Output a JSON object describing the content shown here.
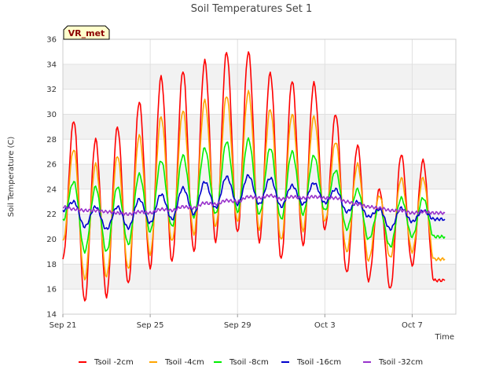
{
  "chart_data": {
    "type": "line",
    "title": "Soil Temperatures Set 1",
    "xlabel": "Time",
    "ylabel": "Soil Temperature (C)",
    "badge": "VR_met",
    "x_ticks": [
      "Sep 21",
      "Sep 25",
      "Sep 29",
      "Oct 3",
      "Oct 7"
    ],
    "x_tick_days": [
      0,
      4,
      8,
      12,
      16
    ],
    "xlim_days": [
      0,
      18
    ],
    "ylim": [
      14,
      36
    ],
    "y_ticks": [
      14,
      16,
      18,
      20,
      22,
      24,
      26,
      28,
      30,
      32,
      34,
      36
    ],
    "grid": true,
    "legend_placement": "bottom",
    "x": [
      0.0,
      0.5,
      1.0,
      1.5,
      2.0,
      2.5,
      3.0,
      3.5,
      4.0,
      4.5,
      5.0,
      5.5,
      6.0,
      6.5,
      7.0,
      7.5,
      8.0,
      8.5,
      9.0,
      9.5,
      10.0,
      10.5,
      11.0,
      11.5,
      12.0,
      12.5,
      13.0,
      13.5,
      14.0,
      14.5,
      15.0,
      15.5,
      16.0,
      16.5,
      17.0,
      17.5
    ],
    "series": [
      {
        "name": "Tsoil -2cm",
        "color": "#ff0000",
        "values": [
          18.4,
          29.5,
          15.0,
          28.0,
          15.4,
          29.0,
          16.4,
          31.0,
          17.7,
          33.0,
          18.2,
          33.5,
          19.0,
          34.3,
          19.8,
          35.0,
          20.5,
          35.0,
          19.8,
          33.3,
          18.4,
          32.7,
          19.5,
          32.5,
          20.8,
          30.0,
          17.3,
          27.5,
          16.7,
          24.0,
          16.0,
          26.8,
          17.9,
          26.3,
          16.7,
          16.7
        ]
      },
      {
        "name": "Tsoil -4cm",
        "color": "#ffa500",
        "values": [
          19.8,
          27.2,
          16.8,
          26.0,
          17.0,
          26.7,
          17.6,
          28.3,
          18.8,
          29.8,
          19.8,
          30.3,
          20.4,
          31.1,
          21.0,
          31.5,
          21.4,
          31.8,
          20.8,
          30.4,
          19.9,
          30.0,
          20.7,
          29.8,
          21.4,
          27.8,
          19.0,
          26.0,
          18.3,
          23.5,
          18.5,
          24.9,
          19.0,
          24.9,
          18.4,
          18.4
        ]
      },
      {
        "name": "Tsoil -8cm",
        "color": "#00ee00",
        "values": [
          21.5,
          24.6,
          19.0,
          24.2,
          19.0,
          24.2,
          19.6,
          25.2,
          20.6,
          26.3,
          21.0,
          26.7,
          21.8,
          27.3,
          22.0,
          27.8,
          22.2,
          28.0,
          22.0,
          27.3,
          21.6,
          27.0,
          22.0,
          26.7,
          22.3,
          25.5,
          20.8,
          24.0,
          20.0,
          22.5,
          19.4,
          23.3,
          20.2,
          23.3,
          20.2,
          20.2
        ]
      },
      {
        "name": "Tsoil -16cm",
        "color": "#0000cc",
        "values": [
          22.3,
          23.0,
          21.0,
          22.6,
          20.8,
          22.6,
          20.9,
          23.2,
          21.3,
          23.6,
          21.6,
          24.1,
          22.0,
          24.6,
          22.5,
          25.0,
          22.8,
          25.1,
          22.8,
          24.9,
          22.6,
          24.3,
          22.8,
          24.5,
          22.9,
          24.0,
          22.2,
          23.0,
          21.8,
          22.4,
          20.8,
          22.5,
          21.4,
          22.3,
          21.6,
          21.6
        ]
      },
      {
        "name": "Tsoil -32cm",
        "color": "#9933cc",
        "values": [
          22.6,
          22.4,
          22.3,
          22.3,
          22.2,
          22.1,
          22.0,
          22.2,
          22.1,
          22.4,
          22.3,
          22.6,
          22.5,
          22.9,
          22.8,
          23.1,
          23.0,
          23.4,
          23.3,
          23.5,
          23.2,
          23.4,
          23.3,
          23.4,
          23.3,
          23.3,
          23.0,
          22.8,
          22.6,
          22.5,
          22.3,
          22.3,
          22.1,
          22.2,
          22.1,
          22.1
        ]
      }
    ]
  }
}
